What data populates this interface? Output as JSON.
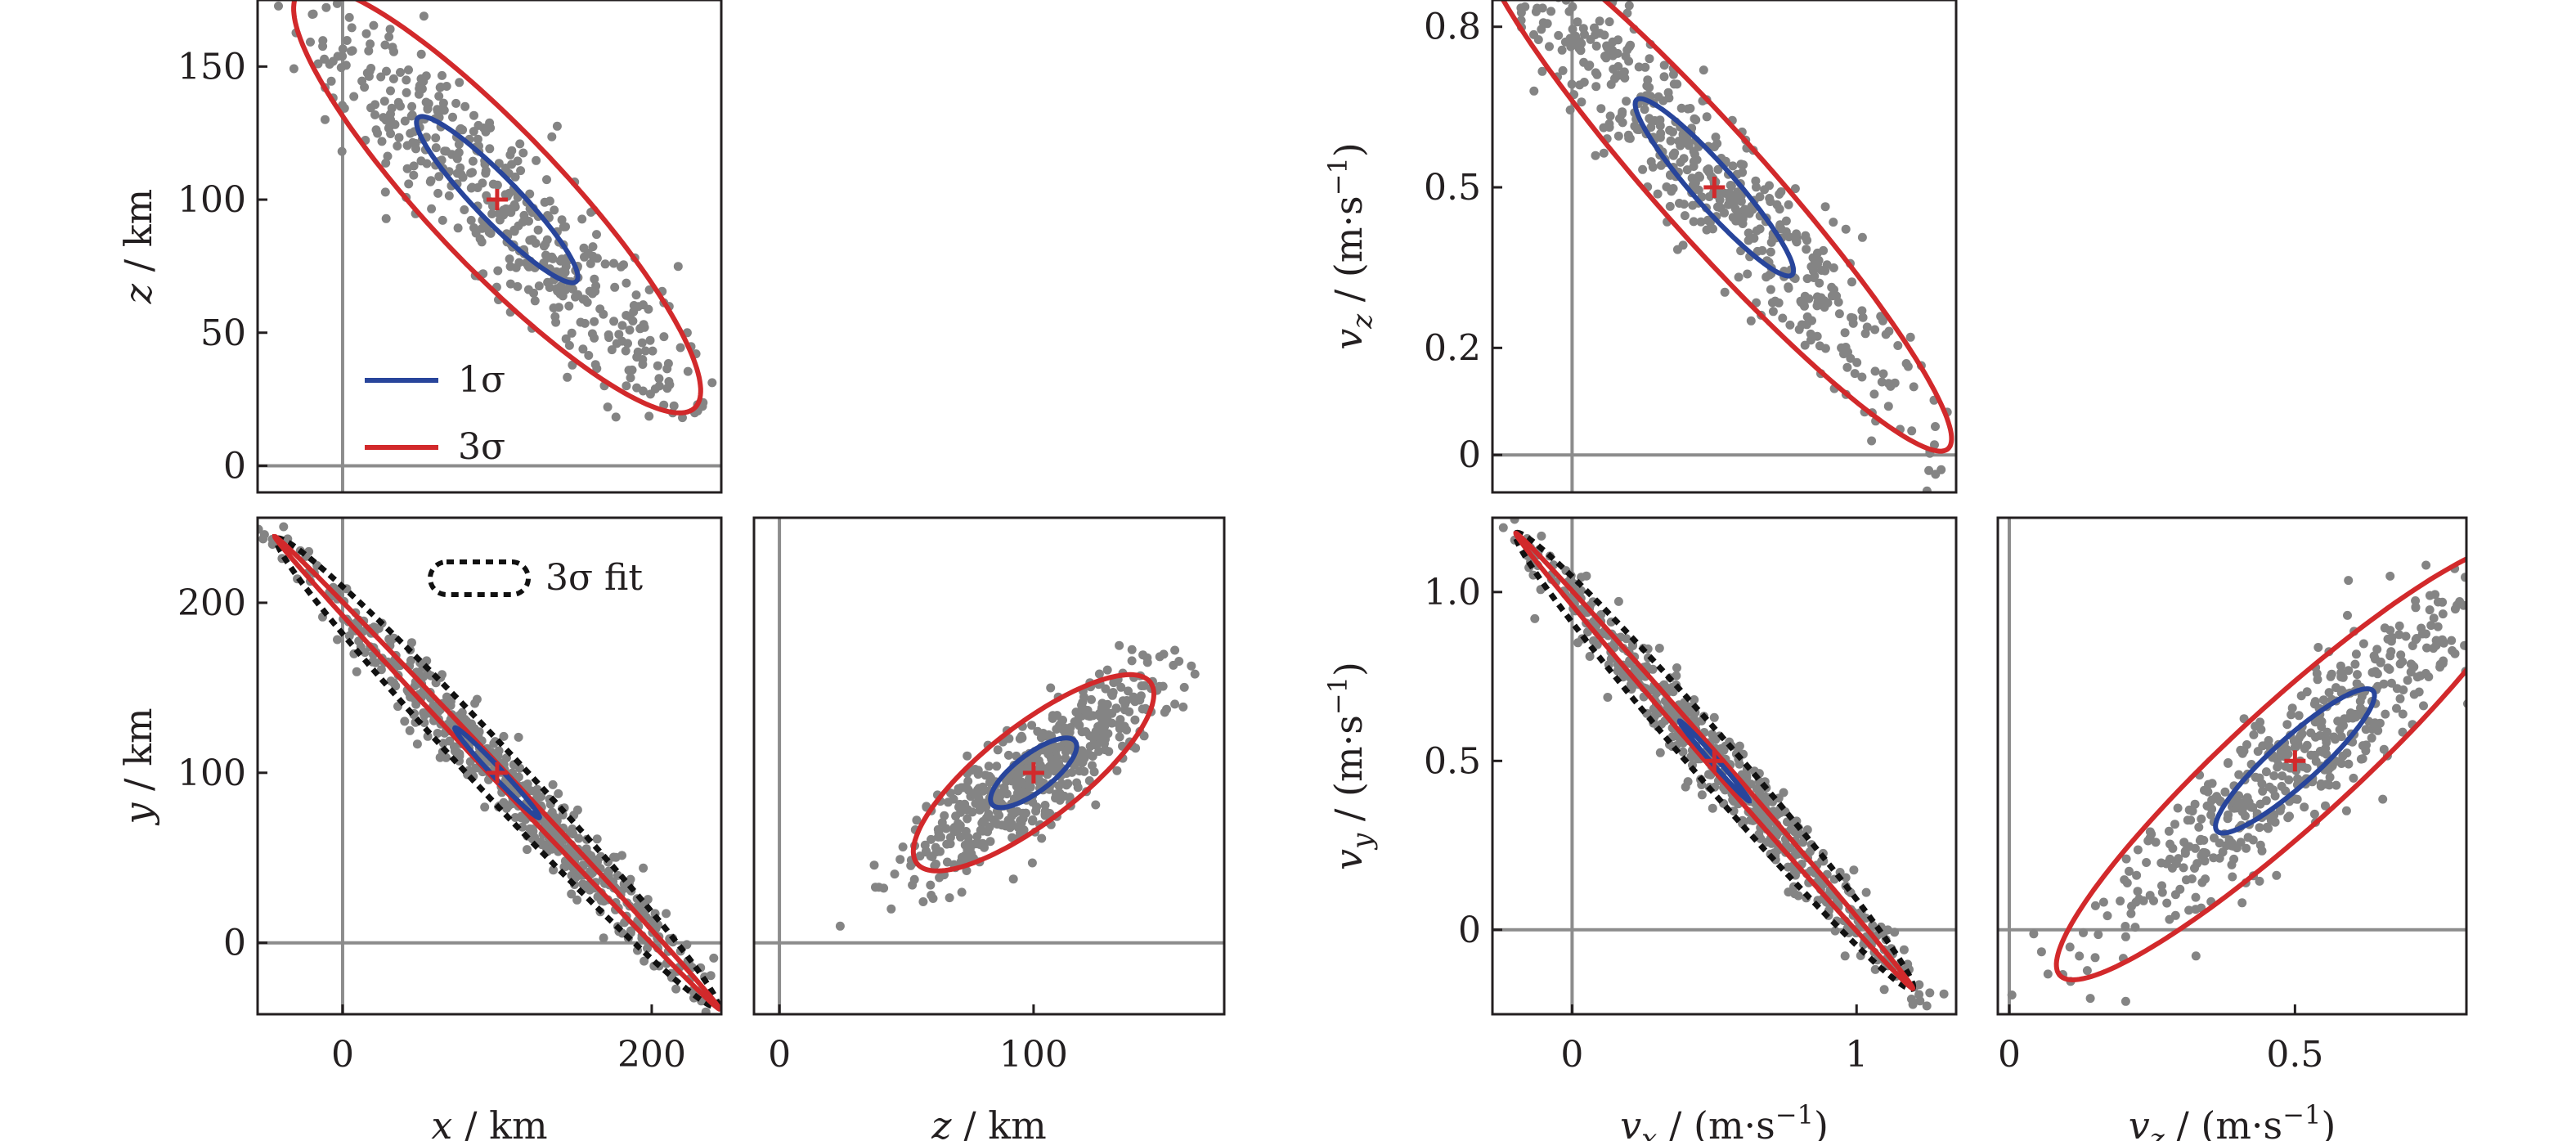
{
  "colors": {
    "points": "#848484",
    "sigma1": "#28459b",
    "sigma3": "#d2292b",
    "fit": "#111111",
    "zero_line": "#8c8c8c",
    "frame": "#231f20"
  },
  "legend": {
    "sigma1": "1σ",
    "sigma3": "3σ",
    "fit": "3σ fit"
  },
  "chart_data": [
    {
      "id": "pos-xz",
      "type": "scatter",
      "quantity": "position",
      "xlim": [
        -55,
        245
      ],
      "ylim": [
        -10,
        175
      ],
      "xticks": [],
      "yticks": [
        0,
        50,
        100,
        150
      ],
      "xtick_labels": [],
      "ytick_labels": [
        "0",
        "50",
        "100",
        "150"
      ],
      "xlabel": "",
      "ylabel_var": "z",
      "ylabel_unit": " / km",
      "center": [
        100,
        100
      ],
      "sigma1": {
        "rx": 60,
        "ry": 10,
        "angle": -30
      },
      "sigma3": {
        "rx": 151,
        "ry": 31,
        "angle": -30
      },
      "points": {
        "n": 520,
        "rx": 88,
        "ry": 14,
        "angle": -30,
        "seed": 11
      },
      "legend": "lower-left"
    },
    {
      "id": "pos-xy",
      "type": "scatter",
      "quantity": "position",
      "xlim": [
        -55,
        245
      ],
      "ylim": [
        -42,
        250
      ],
      "xticks": [
        0,
        200
      ],
      "yticks": [
        0,
        100,
        200
      ],
      "xtick_labels": [
        "0",
        "200"
      ],
      "ytick_labels": [
        "0",
        "100",
        "200"
      ],
      "xlabel_var": "x",
      "xlabel_unit": " / km",
      "ylabel_var": "y",
      "ylabel_unit": " / km",
      "center": [
        100,
        100
      ],
      "sigma1": {
        "rx": 38,
        "ry": 3,
        "angle": -44
      },
      "sigma3": {
        "rx": 200,
        "ry": 4,
        "angle": -44
      },
      "fit3": {
        "rx": 198,
        "ry": 14,
        "angle": -44
      },
      "points": {
        "n": 560,
        "rx": 100,
        "ry": 8,
        "angle": -44,
        "seed": 23
      },
      "legend": "top-center"
    },
    {
      "id": "pos-zy",
      "type": "scatter",
      "quantity": "position",
      "xlim": [
        -10,
        175
      ],
      "ylim": [
        -42,
        250
      ],
      "xticks": [
        0,
        100
      ],
      "yticks": [],
      "xtick_labels": [
        "0",
        "100"
      ],
      "ytick_labels": [],
      "xlabel_var": "z",
      "xlabel_unit": " / km",
      "ylabel": "",
      "center": [
        100,
        100
      ],
      "sigma1": {
        "rx": 25,
        "ry": 9,
        "angle": 52
      },
      "sigma3": {
        "rx": 71,
        "ry": 23,
        "angle": 52
      },
      "points": {
        "n": 520,
        "rx": 38,
        "ry": 11,
        "angle": 52,
        "seed": 37
      }
    },
    {
      "id": "vel-xz",
      "type": "scatter",
      "quantity": "velocity",
      "xlim": [
        -0.28,
        1.35
      ],
      "ylim": [
        -0.07,
        0.85
      ],
      "xticks": [],
      "yticks": [
        0,
        0.2,
        0.5,
        0.8
      ],
      "xtick_labels": [],
      "ytick_labels": [
        "0",
        "0.2",
        "0.5",
        "0.8"
      ],
      "xlabel": "",
      "ylabel_var": "v",
      "ylabel_sub": "z",
      "ylabel_unit": " / (m·s",
      "center": [
        0.5,
        0.5
      ],
      "sigma1": {
        "rx": 0.32,
        "ry": 0.05,
        "angle": -30
      },
      "sigma3": {
        "rx": 0.96,
        "ry": 0.13,
        "angle": -30
      },
      "points": {
        "n": 520,
        "rx": 0.46,
        "ry": 0.065,
        "angle": -30,
        "seed": 51
      }
    },
    {
      "id": "vel-xy",
      "type": "scatter",
      "quantity": "velocity",
      "xlim": [
        -0.28,
        1.35
      ],
      "ylim": [
        -0.25,
        1.22
      ],
      "xticks": [
        0,
        1
      ],
      "yticks": [
        0,
        0.5,
        1.0
      ],
      "xtick_labels": [
        "0",
        "1"
      ],
      "ytick_labels": [
        "0",
        "0.5",
        "1.0"
      ],
      "xlabel_var": "v",
      "xlabel_sub": "x",
      "xlabel_unit": " / (m·s",
      "ylabel_var": "v",
      "ylabel_sub": "y",
      "ylabel_unit": " / (m·s",
      "center": [
        0.5,
        0.5
      ],
      "sigma1": {
        "rx": 0.17,
        "ry": 0.01,
        "angle": -44
      },
      "sigma3": {
        "rx": 0.97,
        "ry": 0.022,
        "angle": -44
      },
      "fit3": {
        "rx": 0.97,
        "ry": 0.07,
        "angle": -44
      },
      "points": {
        "n": 560,
        "rx": 0.5,
        "ry": 0.04,
        "angle": -44,
        "seed": 67
      }
    },
    {
      "id": "vel-zy",
      "type": "scatter",
      "quantity": "velocity",
      "xlim": [
        -0.02,
        0.8
      ],
      "ylim": [
        -0.25,
        1.22
      ],
      "xticks": [
        0,
        0.5
      ],
      "yticks": [],
      "xtick_labels": [
        "0",
        "0.5"
      ],
      "ytick_labels": [],
      "xlabel_var": "v",
      "xlabel_sub": "z",
      "xlabel_unit": " / (m·s",
      "ylabel": "",
      "center": [
        0.5,
        0.5
      ],
      "sigma1": {
        "rx": 0.25,
        "ry": 0.05,
        "angle": 58
      },
      "sigma3": {
        "rx": 0.76,
        "ry": 0.13,
        "angle": 58
      },
      "points": {
        "n": 520,
        "rx": 0.37,
        "ry": 0.06,
        "angle": 58,
        "seed": 83
      }
    }
  ]
}
